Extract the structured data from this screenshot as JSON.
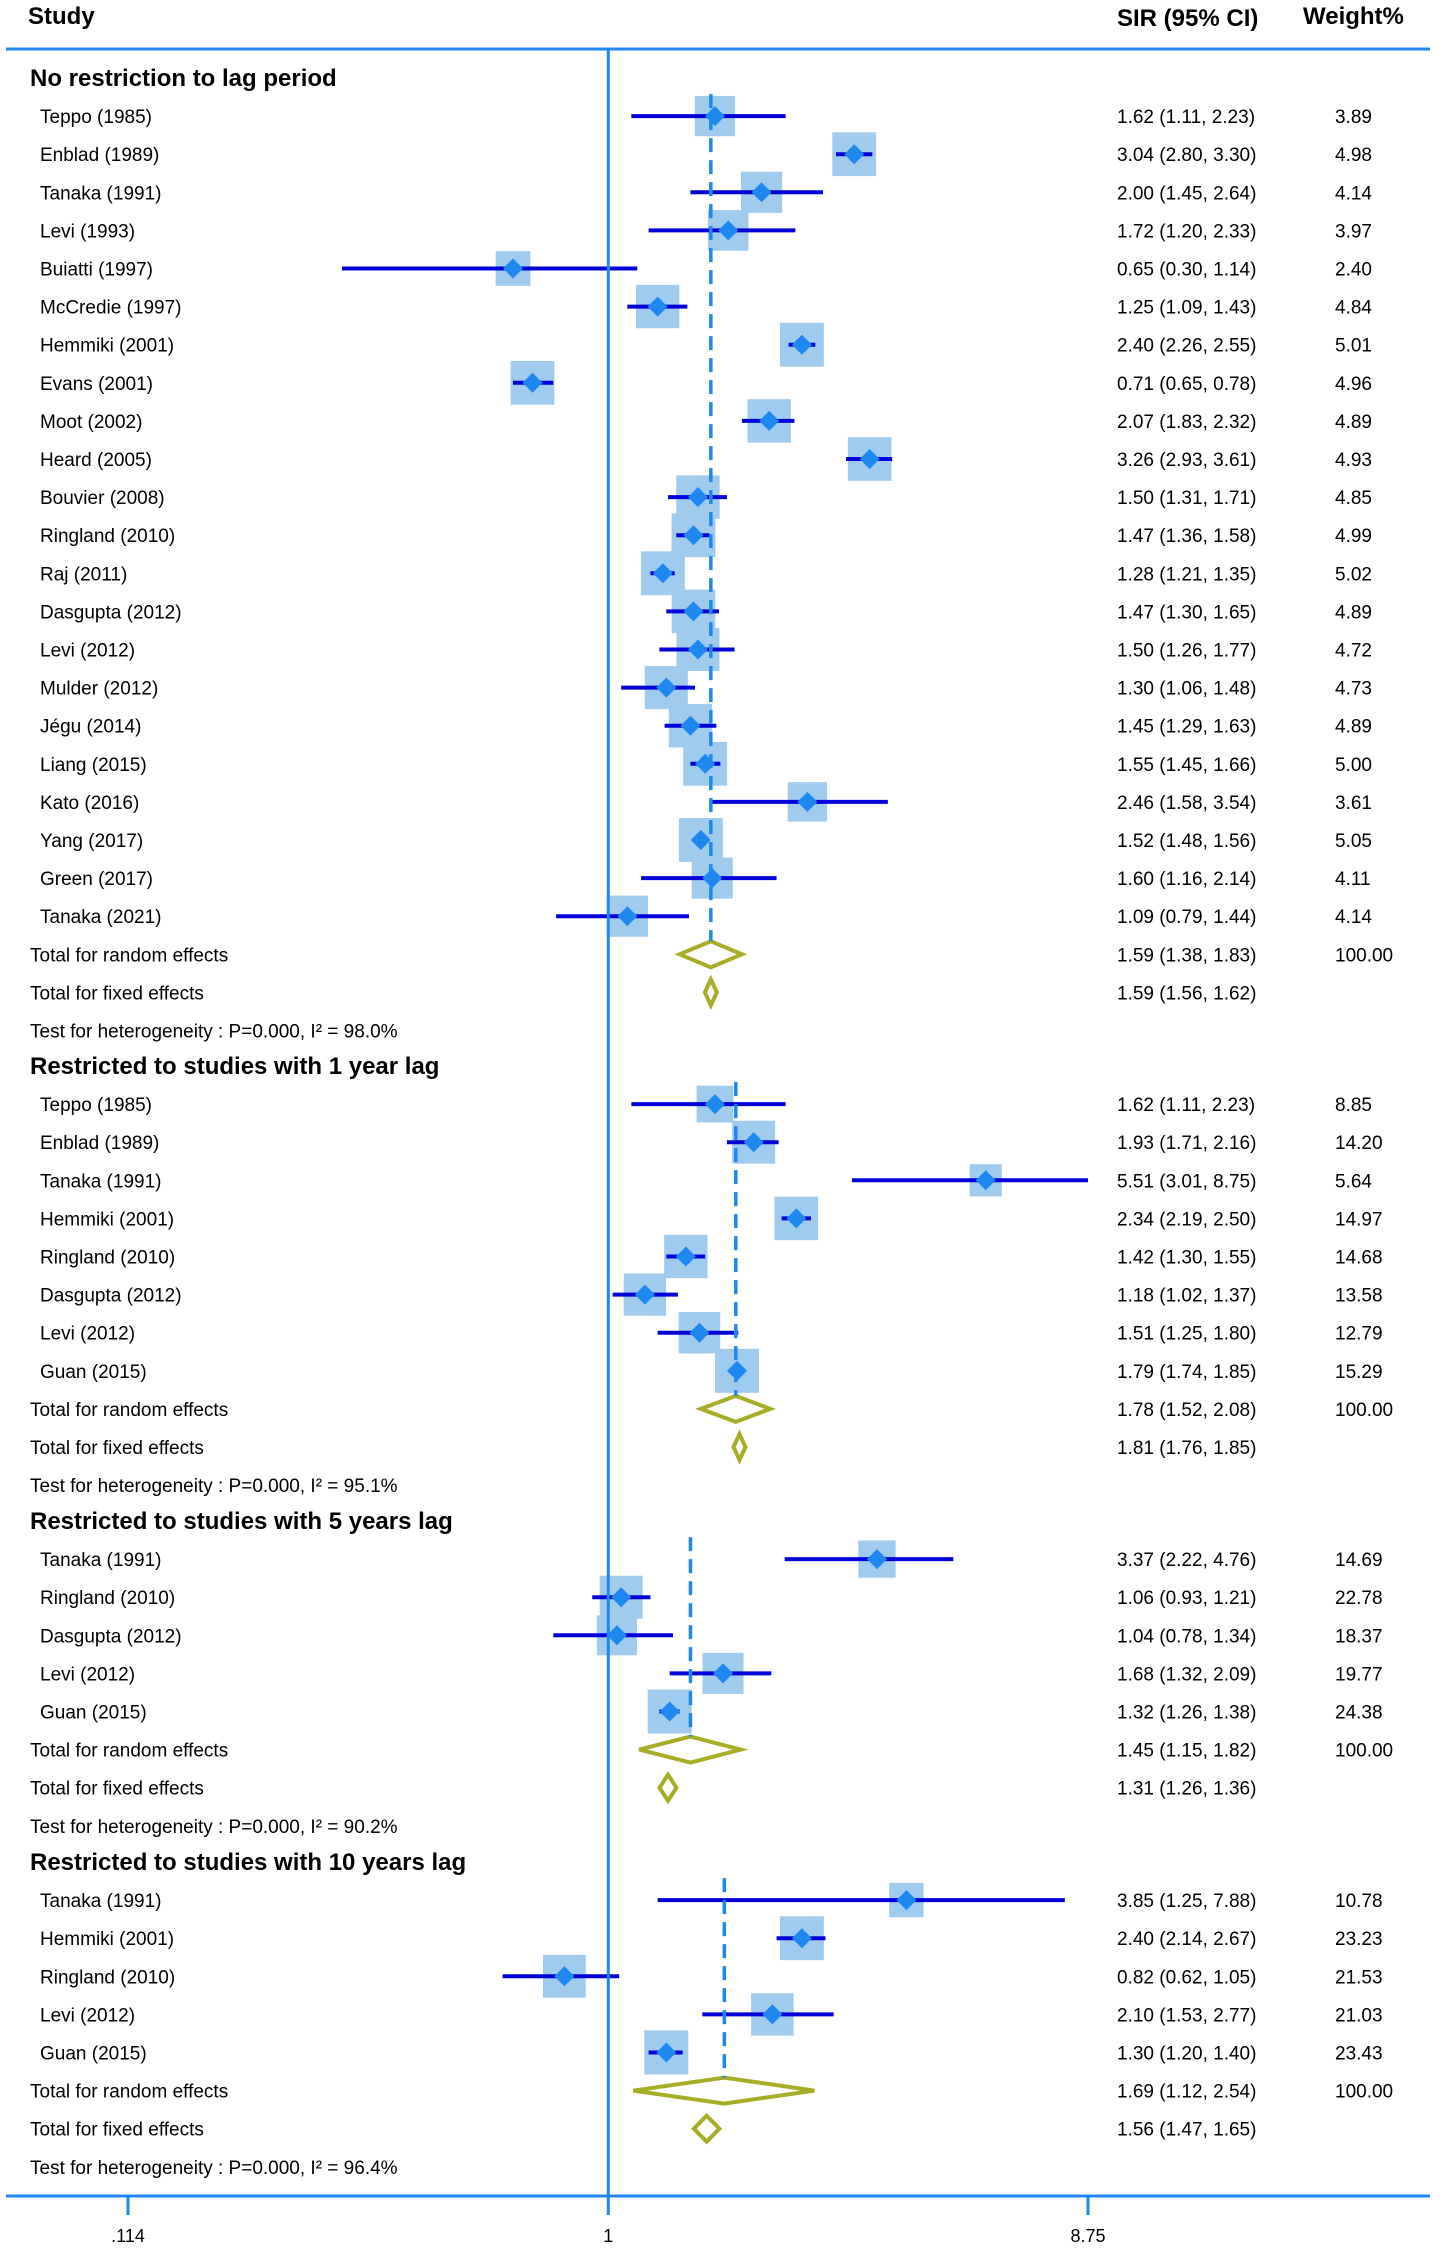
{
  "headers": {
    "study": "Study",
    "sir": "SIR (95% CI)",
    "weight": "Weight%"
  },
  "chart_data": {
    "type": "forest",
    "x_scale": "log",
    "xlim": [
      0.114,
      8.75
    ],
    "x_ticks": [
      ".114",
      "1",
      "8.75"
    ],
    "colors": {
      "ci": "#0000d8",
      "point": "#1e88f0",
      "box": "#9fcbee",
      "pooled": "#a8ad28",
      "axis": "#1e88f0"
    },
    "sections": [
      {
        "title": "No restriction to lag period",
        "studies": [
          {
            "name": "Teppo (1985)",
            "est": 1.62,
            "lo": 1.11,
            "hi": 2.23,
            "ci_text": "1.62 (1.11, 2.23)",
            "weight": "3.89"
          },
          {
            "name": "Enblad (1989)",
            "est": 3.04,
            "lo": 2.8,
            "hi": 3.3,
            "ci_text": "3.04 (2.80, 3.30)",
            "weight": "4.98"
          },
          {
            "name": "Tanaka (1991)",
            "est": 2.0,
            "lo": 1.45,
            "hi": 2.64,
            "ci_text": "2.00 (1.45, 2.64)",
            "weight": "4.14"
          },
          {
            "name": "Levi (1993)",
            "est": 1.72,
            "lo": 1.2,
            "hi": 2.33,
            "ci_text": "1.72 (1.20, 2.33)",
            "weight": "3.97"
          },
          {
            "name": "Buiatti (1997)",
            "est": 0.65,
            "lo": 0.3,
            "hi": 1.14,
            "ci_text": "0.65 (0.30, 1.14)",
            "weight": "2.40"
          },
          {
            "name": "McCredie (1997)",
            "est": 1.25,
            "lo": 1.09,
            "hi": 1.43,
            "ci_text": "1.25 (1.09, 1.43)",
            "weight": "4.84"
          },
          {
            "name": "Hemmiki (2001)",
            "est": 2.4,
            "lo": 2.26,
            "hi": 2.55,
            "ci_text": "2.40 (2.26, 2.55)",
            "weight": "5.01"
          },
          {
            "name": "Evans (2001)",
            "est": 0.71,
            "lo": 0.65,
            "hi": 0.78,
            "ci_text": "0.71 (0.65, 0.78)",
            "weight": "4.96"
          },
          {
            "name": "Moot (2002)",
            "est": 2.07,
            "lo": 1.83,
            "hi": 2.32,
            "ci_text": "2.07 (1.83, 2.32)",
            "weight": "4.89"
          },
          {
            "name": "Heard (2005)",
            "est": 3.26,
            "lo": 2.93,
            "hi": 3.61,
            "ci_text": "3.26 (2.93, 3.61)",
            "weight": "4.93"
          },
          {
            "name": "Bouvier (2008)",
            "est": 1.5,
            "lo": 1.31,
            "hi": 1.71,
            "ci_text": "1.50 (1.31, 1.71)",
            "weight": "4.85"
          },
          {
            "name": "Ringland (2010)",
            "est": 1.47,
            "lo": 1.36,
            "hi": 1.58,
            "ci_text": "1.47 (1.36, 1.58)",
            "weight": "4.99"
          },
          {
            "name": "Raj (2011)",
            "est": 1.28,
            "lo": 1.21,
            "hi": 1.35,
            "ci_text": "1.28 (1.21, 1.35)",
            "weight": "5.02"
          },
          {
            "name": "Dasgupta (2012)",
            "est": 1.47,
            "lo": 1.3,
            "hi": 1.65,
            "ci_text": "1.47 (1.30, 1.65)",
            "weight": "4.89"
          },
          {
            "name": "Levi (2012)",
            "est": 1.5,
            "lo": 1.26,
            "hi": 1.77,
            "ci_text": "1.50 (1.26, 1.77)",
            "weight": "4.72"
          },
          {
            "name": "Mulder (2012)",
            "est": 1.3,
            "lo": 1.06,
            "hi": 1.48,
            "ci_text": "1.30 (1.06, 1.48)",
            "weight": "4.73"
          },
          {
            "name": "Jégu (2014)",
            "est": 1.45,
            "lo": 1.29,
            "hi": 1.63,
            "ci_text": "1.45 (1.29, 1.63)",
            "weight": "4.89"
          },
          {
            "name": "Liang (2015)",
            "est": 1.55,
            "lo": 1.45,
            "hi": 1.66,
            "ci_text": "1.55 (1.45, 1.66)",
            "weight": "5.00"
          },
          {
            "name": "Kato (2016)",
            "est": 2.46,
            "lo": 1.58,
            "hi": 3.54,
            "ci_text": "2.46 (1.58, 3.54)",
            "weight": "3.61"
          },
          {
            "name": "Yang (2017)",
            "est": 1.52,
            "lo": 1.48,
            "hi": 1.56,
            "ci_text": "1.52 (1.48, 1.56)",
            "weight": "5.05"
          },
          {
            "name": "Green (2017)",
            "est": 1.6,
            "lo": 1.16,
            "hi": 2.14,
            "ci_text": "1.60 (1.16, 2.14)",
            "weight": "4.11"
          },
          {
            "name": "Tanaka (2021)",
            "est": 1.09,
            "lo": 0.79,
            "hi": 1.44,
            "ci_text": "1.09 (0.79, 1.44)",
            "weight": "4.14"
          }
        ],
        "random": {
          "label": "Total for random effects",
          "est": 1.59,
          "lo": 1.38,
          "hi": 1.83,
          "ci_text": "1.59 (1.38, 1.83)",
          "weight": "100.00"
        },
        "fixed": {
          "label": "Total for fixed effects",
          "est": 1.59,
          "lo": 1.56,
          "hi": 1.62,
          "ci_text": "1.59 (1.56, 1.62)"
        },
        "heterogeneity": "Test for heterogeneity : P=0.000, I² = 98.0%"
      },
      {
        "title": "Restricted to studies with 1 year lag",
        "studies": [
          {
            "name": "Teppo (1985)",
            "est": 1.62,
            "lo": 1.11,
            "hi": 2.23,
            "ci_text": "1.62 (1.11, 2.23)",
            "weight": "8.85"
          },
          {
            "name": "Enblad (1989)",
            "est": 1.93,
            "lo": 1.71,
            "hi": 2.16,
            "ci_text": "1.93 (1.71, 2.16)",
            "weight": "14.20"
          },
          {
            "name": "Tanaka (1991)",
            "est": 5.51,
            "lo": 3.01,
            "hi": 8.75,
            "ci_text": "5.51 (3.01, 8.75)",
            "weight": "5.64"
          },
          {
            "name": "Hemmiki (2001)",
            "est": 2.34,
            "lo": 2.19,
            "hi": 2.5,
            "ci_text": "2.34 (2.19, 2.50)",
            "weight": "14.97"
          },
          {
            "name": "Ringland (2010)",
            "est": 1.42,
            "lo": 1.3,
            "hi": 1.55,
            "ci_text": "1.42 (1.30, 1.55)",
            "weight": "14.68"
          },
          {
            "name": "Dasgupta (2012)",
            "est": 1.18,
            "lo": 1.02,
            "hi": 1.37,
            "ci_text": "1.18 (1.02, 1.37)",
            "weight": "13.58"
          },
          {
            "name": "Levi (2012)",
            "est": 1.51,
            "lo": 1.25,
            "hi": 1.8,
            "ci_text": "1.51 (1.25, 1.80)",
            "weight": "12.79"
          },
          {
            "name": "Guan (2015)",
            "est": 1.79,
            "lo": 1.74,
            "hi": 1.85,
            "ci_text": "1.79 (1.74, 1.85)",
            "weight": "15.29"
          }
        ],
        "random": {
          "label": "Total for random effects",
          "est": 1.78,
          "lo": 1.52,
          "hi": 2.08,
          "ci_text": "1.78 (1.52, 2.08)",
          "weight": "100.00"
        },
        "fixed": {
          "label": "Total for fixed effects",
          "est": 1.81,
          "lo": 1.76,
          "hi": 1.85,
          "ci_text": "1.81 (1.76, 1.85)"
        },
        "heterogeneity": "Test for heterogeneity : P=0.000, I² = 95.1%"
      },
      {
        "title": "Restricted to studies with 5 years lag",
        "studies": [
          {
            "name": "Tanaka (1991)",
            "est": 3.37,
            "lo": 2.22,
            "hi": 4.76,
            "ci_text": "3.37 (2.22, 4.76)",
            "weight": "14.69"
          },
          {
            "name": "Ringland (2010)",
            "est": 1.06,
            "lo": 0.93,
            "hi": 1.21,
            "ci_text": "1.06 (0.93, 1.21)",
            "weight": "22.78"
          },
          {
            "name": "Dasgupta (2012)",
            "est": 1.04,
            "lo": 0.78,
            "hi": 1.34,
            "ci_text": "1.04 (0.78, 1.34)",
            "weight": "18.37"
          },
          {
            "name": "Levi (2012)",
            "est": 1.68,
            "lo": 1.32,
            "hi": 2.09,
            "ci_text": "1.68 (1.32, 2.09)",
            "weight": "19.77"
          },
          {
            "name": "Guan (2015)",
            "est": 1.32,
            "lo": 1.26,
            "hi": 1.38,
            "ci_text": "1.32 (1.26, 1.38)",
            "weight": "24.38"
          }
        ],
        "random": {
          "label": "Total for random effects",
          "est": 1.45,
          "lo": 1.15,
          "hi": 1.82,
          "ci_text": "1.45 (1.15, 1.82)",
          "weight": "100.00"
        },
        "fixed": {
          "label": "Total for fixed effects",
          "est": 1.31,
          "lo": 1.26,
          "hi": 1.36,
          "ci_text": "1.31 (1.26, 1.36)"
        },
        "heterogeneity": "Test for heterogeneity : P=0.000, I² = 90.2%"
      },
      {
        "title": "Restricted to studies with 10 years lag",
        "studies": [
          {
            "name": "Tanaka (1991)",
            "est": 3.85,
            "lo": 1.25,
            "hi": 7.88,
            "ci_text": "3.85 (1.25, 7.88)",
            "weight": "10.78"
          },
          {
            "name": "Hemmiki (2001)",
            "est": 2.4,
            "lo": 2.14,
            "hi": 2.67,
            "ci_text": "2.40 (2.14, 2.67)",
            "weight": "23.23"
          },
          {
            "name": "Ringland (2010)",
            "est": 0.82,
            "lo": 0.62,
            "hi": 1.05,
            "ci_text": "0.82 (0.62, 1.05)",
            "weight": "21.53"
          },
          {
            "name": "Levi (2012)",
            "est": 2.1,
            "lo": 1.53,
            "hi": 2.77,
            "ci_text": "2.10 (1.53, 2.77)",
            "weight": "21.03"
          },
          {
            "name": "Guan (2015)",
            "est": 1.3,
            "lo": 1.2,
            "hi": 1.4,
            "ci_text": "1.30 (1.20, 1.40)",
            "weight": "23.43"
          }
        ],
        "random": {
          "label": "Total for random effects",
          "est": 1.69,
          "lo": 1.12,
          "hi": 2.54,
          "ci_text": "1.69 (1.12, 2.54)",
          "weight": "100.00"
        },
        "fixed": {
          "label": "Total for fixed effects",
          "est": 1.56,
          "lo": 1.47,
          "hi": 1.65,
          "ci_text": "1.56 (1.47, 1.65)"
        },
        "heterogeneity": "Test for heterogeneity : P=0.000, I² = 96.4%"
      }
    ]
  }
}
